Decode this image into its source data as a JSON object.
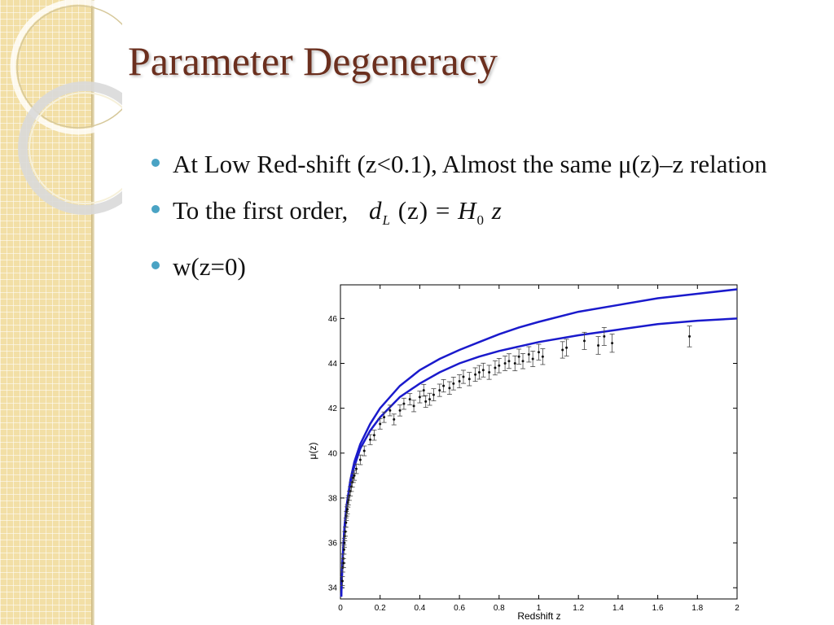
{
  "slide": {
    "title": "Parameter Degeneracy",
    "bullets": [
      {
        "text": "At Low Red-shift (z<0.1),  Almost the same μ(z)–z relation"
      },
      {
        "text": "To the first order,",
        "equation": {
          "lhs": "d",
          "lhs_sub": "L",
          "arg": "(z)",
          "eq": "=",
          "rhs": "H",
          "rhs_sub": "0",
          "var": "z"
        }
      },
      {
        "text": "w(z=0)"
      }
    ],
    "colors": {
      "title": "#6b2f1e",
      "bullet": "#4aa3c4",
      "band": "#f2dfa6",
      "curve": "#1a1acc"
    }
  },
  "chart_data": {
    "type": "scatter",
    "xlabel": "Redshift z",
    "ylabel": "μ(z)",
    "xlim": [
      0,
      2
    ],
    "ylim": [
      33.5,
      47.5
    ],
    "xticks": [
      "0",
      "0.2",
      "0.4",
      "0.6",
      "0.8",
      "1",
      "1.2",
      "1.4",
      "1.6",
      "1.8",
      "2"
    ],
    "yticks": [
      "34",
      "36",
      "38",
      "40",
      "42",
      "44",
      "46"
    ],
    "grid": false,
    "series": [
      {
        "kind": "line",
        "color": "#1a1acc",
        "x": [
          0.004,
          0.01,
          0.02,
          0.03,
          0.05,
          0.07,
          0.1,
          0.15,
          0.2,
          0.3,
          0.4,
          0.5,
          0.6,
          0.7,
          0.8,
          0.9,
          1.0,
          1.2,
          1.4,
          1.6,
          1.8,
          2.0
        ],
        "y": [
          33.6,
          35.1,
          36.7,
          37.6,
          38.8,
          39.6,
          40.4,
          41.3,
          42.0,
          43.0,
          43.7,
          44.2,
          44.6,
          44.95,
          45.3,
          45.6,
          45.85,
          46.3,
          46.6,
          46.9,
          47.1,
          47.3
        ]
      },
      {
        "kind": "line",
        "color": "#1a1acc",
        "x": [
          0.004,
          0.01,
          0.02,
          0.03,
          0.05,
          0.07,
          0.1,
          0.15,
          0.2,
          0.3,
          0.4,
          0.5,
          0.6,
          0.7,
          0.8,
          0.9,
          1.0,
          1.2,
          1.4,
          1.6,
          1.8,
          2.0
        ],
        "y": [
          33.6,
          35.1,
          36.6,
          37.5,
          38.7,
          39.4,
          40.2,
          41.0,
          41.6,
          42.5,
          43.1,
          43.6,
          44.0,
          44.3,
          44.55,
          44.75,
          44.95,
          45.25,
          45.5,
          45.75,
          45.9,
          46.0
        ]
      },
      {
        "kind": "points",
        "color": "#111111",
        "x": [
          0.01,
          0.012,
          0.015,
          0.016,
          0.018,
          0.02,
          0.022,
          0.025,
          0.028,
          0.03,
          0.032,
          0.035,
          0.038,
          0.04,
          0.045,
          0.05,
          0.055,
          0.06,
          0.065,
          0.07,
          0.08,
          0.1,
          0.12,
          0.15,
          0.17,
          0.2,
          0.22,
          0.25,
          0.27,
          0.3,
          0.32,
          0.35,
          0.37,
          0.4,
          0.42,
          0.43,
          0.45,
          0.47,
          0.5,
          0.52,
          0.55,
          0.57,
          0.6,
          0.62,
          0.65,
          0.68,
          0.7,
          0.72,
          0.75,
          0.78,
          0.8,
          0.83,
          0.85,
          0.88,
          0.9,
          0.92,
          0.95,
          0.97,
          1.0,
          1.02,
          1.12,
          1.14,
          1.23,
          1.3,
          1.33,
          1.37,
          1.76
        ],
        "y": [
          34.3,
          34.9,
          35.3,
          35.1,
          35.7,
          36.0,
          36.3,
          36.5,
          36.9,
          37.2,
          37.4,
          37.5,
          37.8,
          37.9,
          38.1,
          38.3,
          38.5,
          38.7,
          38.9,
          39.0,
          39.3,
          39.7,
          40.1,
          40.6,
          40.8,
          41.3,
          41.6,
          41.9,
          41.5,
          41.9,
          42.2,
          42.4,
          42.1,
          42.5,
          42.8,
          42.3,
          42.4,
          42.6,
          42.8,
          43.0,
          42.9,
          43.1,
          43.2,
          43.4,
          43.3,
          43.5,
          43.6,
          43.7,
          43.6,
          43.8,
          43.9,
          44.0,
          44.1,
          44.0,
          44.3,
          44.1,
          44.4,
          44.2,
          44.5,
          44.3,
          44.6,
          44.7,
          45.0,
          44.8,
          45.2,
          44.9,
          45.2
        ]
      }
    ]
  }
}
